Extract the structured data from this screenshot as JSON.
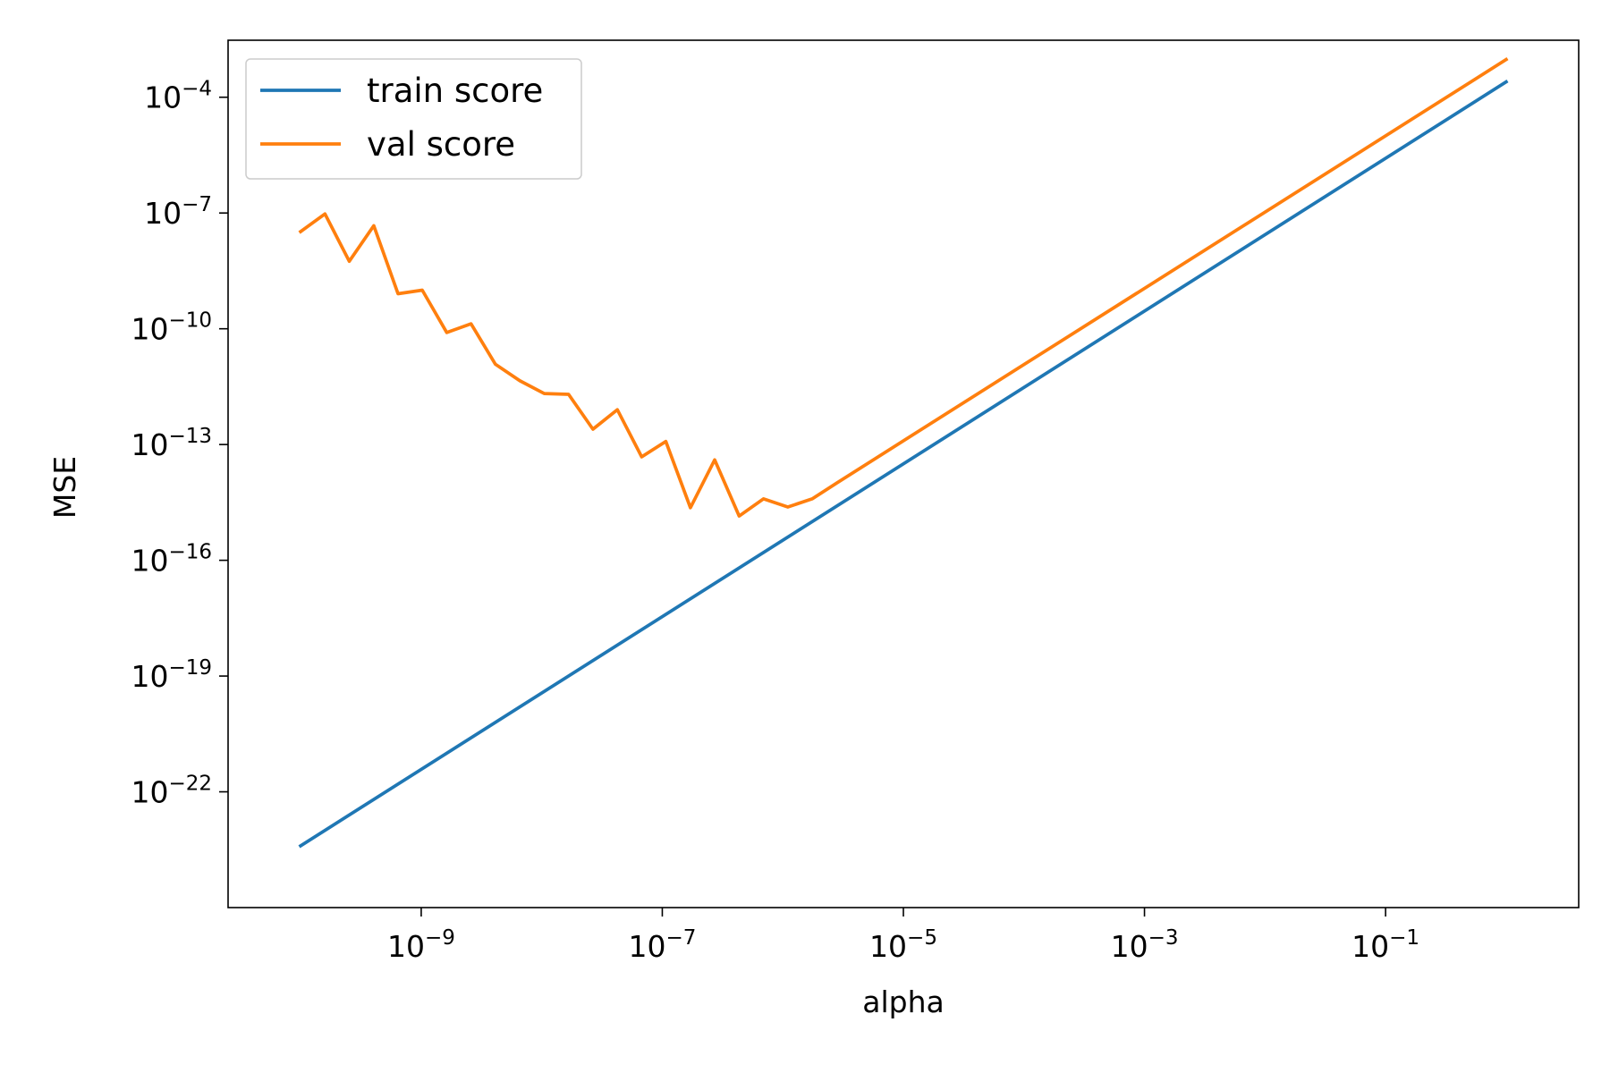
{
  "chart_data": {
    "type": "line",
    "xlabel": "alpha",
    "ylabel": "MSE",
    "xscale": "log",
    "yscale": "log",
    "xlim": [
      2.5e-11,
      4.0
    ],
    "ylim": [
      1e-25,
      0.003
    ],
    "xticks": [
      1e-09,
      1e-07,
      1e-05,
      0.001,
      0.1
    ],
    "xtick_labels": [
      {
        "base": "10",
        "exp": "−9"
      },
      {
        "base": "10",
        "exp": "−7"
      },
      {
        "base": "10",
        "exp": "−5"
      },
      {
        "base": "10",
        "exp": "−3"
      },
      {
        "base": "10",
        "exp": "−1"
      }
    ],
    "yticks": [
      1e-22,
      1e-19,
      1e-16,
      1e-13,
      1e-10,
      1e-07,
      0.0001
    ],
    "ytick_labels": [
      {
        "base": "10",
        "exp": "−22"
      },
      {
        "base": "10",
        "exp": "−19"
      },
      {
        "base": "10",
        "exp": "−16"
      },
      {
        "base": "10",
        "exp": "−13"
      },
      {
        "base": "10",
        "exp": "−10"
      },
      {
        "base": "10",
        "exp": "−7"
      },
      {
        "base": "10",
        "exp": "−4"
      }
    ],
    "grid": false,
    "legend_position": "upper-left",
    "series": [
      {
        "name": "train score",
        "color": "#1f77b4",
        "points": [
          [
            1e-10,
            4e-24
          ],
          [
            1.0,
            0.00025
          ]
        ]
      },
      {
        "name": "val score",
        "color": "#ff7f0e",
        "points": [
          [
            1e-10,
            3.3e-08
          ],
          [
            1.59e-10,
            9.5e-08
          ],
          [
            2.53e-10,
            5.6e-09
          ],
          [
            4.04e-10,
            4.7e-08
          ],
          [
            6.42e-10,
            8.1e-10
          ],
          [
            1.02e-09,
            1e-09
          ],
          [
            1.63e-09,
            8e-11
          ],
          [
            2.59e-09,
            1.35e-10
          ],
          [
            4.13e-09,
            1.2e-11
          ],
          [
            6.58e-09,
            4.5e-12
          ],
          [
            1.05e-08,
            2.1e-12
          ],
          [
            1.67e-08,
            2e-12
          ],
          [
            2.66e-08,
            2.5e-13
          ],
          [
            4.24e-08,
            8e-13
          ],
          [
            6.74e-08,
            4.8e-14
          ],
          [
            1.07e-07,
            1.2e-13
          ],
          [
            1.71e-07,
            2.3e-15
          ],
          [
            2.72e-07,
            4e-14
          ],
          [
            4.34e-07,
            1.4e-15
          ],
          [
            6.91e-07,
            3.9e-15
          ],
          [
            1.1e-06,
            2.4e-15
          ],
          [
            1.75e-06,
            3.9e-15
          ],
          [
            2.79e-06,
            1e-14
          ],
          [
            1.0,
            0.00095
          ]
        ]
      }
    ]
  }
}
